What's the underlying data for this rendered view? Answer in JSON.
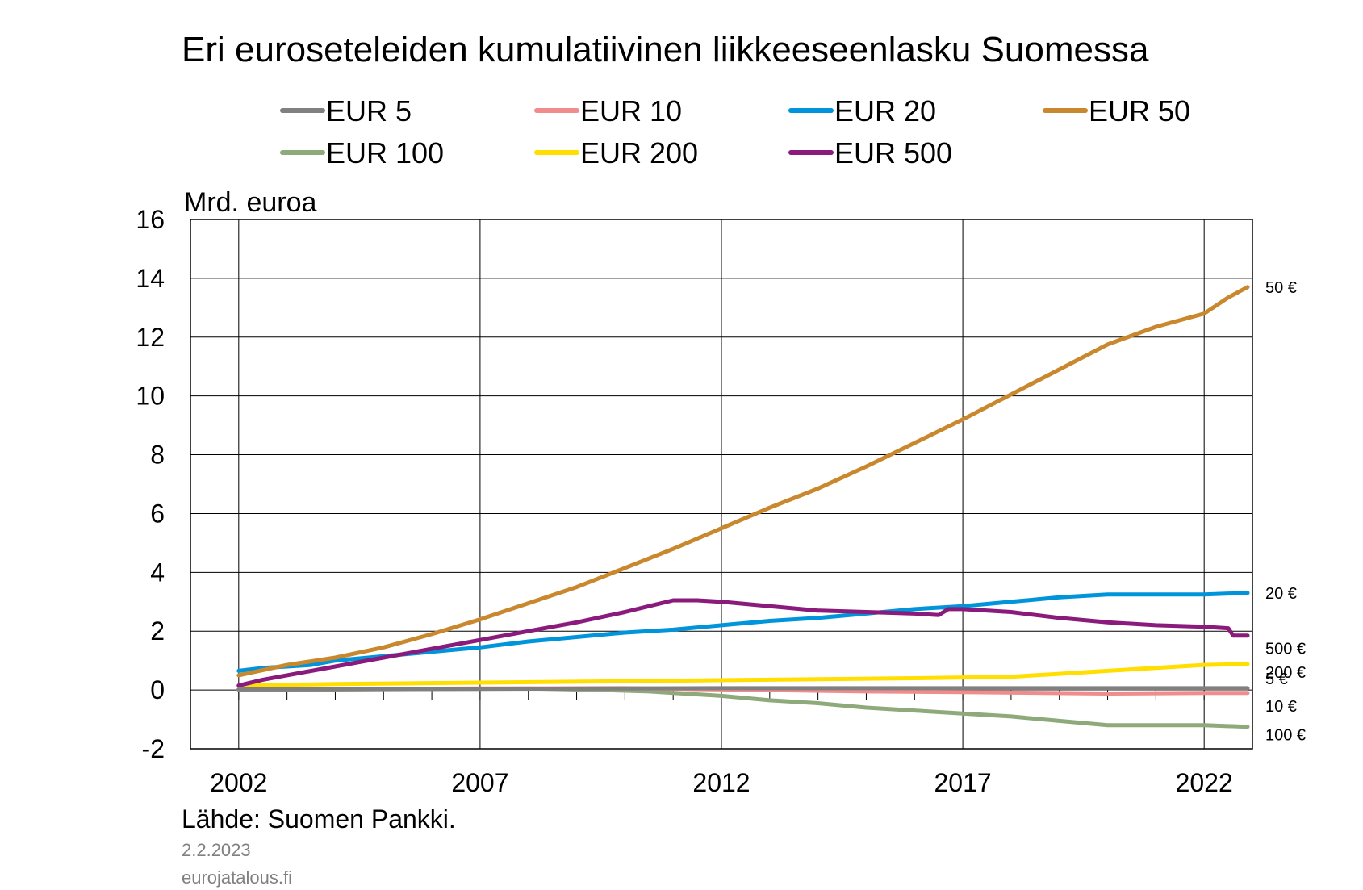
{
  "chart_data": {
    "type": "line",
    "title": "Eri euroseteleiden kumulatiivinen liikkeeseenlasku Suomessa",
    "ylabel": "Mrd. euroa",
    "xlabel": "",
    "ylim": [
      -2,
      16
    ],
    "yticks": [
      "-2",
      "0",
      "2",
      "4",
      "6",
      "8",
      "10",
      "12",
      "14",
      "16"
    ],
    "xlim": [
      2001.0,
      2023.0
    ],
    "xtick_labels": [
      "2002",
      "2007",
      "2012",
      "2017",
      "2022"
    ],
    "xtick_values": [
      2002,
      2007,
      2012,
      2017,
      2022
    ],
    "grid": true,
    "legend_position": "top",
    "source": "Lähde: Suomen Pankki.",
    "date": "2.2.2023",
    "site": "eurojatalous.fi",
    "series": [
      {
        "name": "EUR 5",
        "color": "#808080",
        "end_label": "5 €",
        "points": [
          [
            2002.0,
            0.02
          ],
          [
            2007.0,
            0.04
          ],
          [
            2012.0,
            0.06
          ],
          [
            2017.0,
            0.06
          ],
          [
            2022.0,
            0.06
          ],
          [
            2022.9,
            0.06
          ]
        ]
      },
      {
        "name": "EUR 10",
        "color": "#F08C8C",
        "end_label": "10 €",
        "points": [
          [
            2002.0,
            0.02
          ],
          [
            2007.0,
            0.05
          ],
          [
            2010.0,
            0.06
          ],
          [
            2012.0,
            0.02
          ],
          [
            2015.0,
            -0.05
          ],
          [
            2017.0,
            -0.07
          ],
          [
            2020.0,
            -0.12
          ],
          [
            2022.0,
            -0.1
          ],
          [
            2022.9,
            -0.1
          ]
        ]
      },
      {
        "name": "EUR 20",
        "color": "#0095DA",
        "end_label": "20 €",
        "points": [
          [
            2002.0,
            0.65
          ],
          [
            2002.5,
            0.75
          ],
          [
            2003.0,
            0.8
          ],
          [
            2003.5,
            0.85
          ],
          [
            2004.0,
            1.0
          ],
          [
            2005.0,
            1.15
          ],
          [
            2006.0,
            1.3
          ],
          [
            2007.0,
            1.45
          ],
          [
            2008.0,
            1.65
          ],
          [
            2009.0,
            1.8
          ],
          [
            2010.0,
            1.95
          ],
          [
            2011.0,
            2.05
          ],
          [
            2012.0,
            2.2
          ],
          [
            2013.0,
            2.35
          ],
          [
            2014.0,
            2.45
          ],
          [
            2015.0,
            2.6
          ],
          [
            2016.0,
            2.75
          ],
          [
            2017.0,
            2.85
          ],
          [
            2018.0,
            3.0
          ],
          [
            2019.0,
            3.15
          ],
          [
            2020.0,
            3.25
          ],
          [
            2021.0,
            3.25
          ],
          [
            2022.0,
            3.25
          ],
          [
            2022.9,
            3.3
          ]
        ]
      },
      {
        "name": "EUR 50",
        "color": "#C9882D",
        "end_label": "50 €",
        "points": [
          [
            2002.0,
            0.5
          ],
          [
            2003.0,
            0.85
          ],
          [
            2004.0,
            1.1
          ],
          [
            2005.0,
            1.45
          ],
          [
            2006.0,
            1.9
          ],
          [
            2007.0,
            2.4
          ],
          [
            2008.0,
            2.95
          ],
          [
            2009.0,
            3.5
          ],
          [
            2010.0,
            4.15
          ],
          [
            2011.0,
            4.8
          ],
          [
            2012.0,
            5.5
          ],
          [
            2013.0,
            6.2
          ],
          [
            2014.0,
            6.85
          ],
          [
            2015.0,
            7.6
          ],
          [
            2016.0,
            8.4
          ],
          [
            2017.0,
            9.2
          ],
          [
            2018.0,
            10.05
          ],
          [
            2019.0,
            10.9
          ],
          [
            2020.0,
            11.75
          ],
          [
            2021.0,
            12.35
          ],
          [
            2022.0,
            12.8
          ],
          [
            2022.5,
            13.35
          ],
          [
            2022.9,
            13.7
          ]
        ]
      },
      {
        "name": "EUR 100",
        "color": "#8EAA7A",
        "end_label": "100 €",
        "points": [
          [
            2002.0,
            0.0
          ],
          [
            2008.0,
            0.05
          ],
          [
            2009.5,
            0.0
          ],
          [
            2010.5,
            -0.05
          ],
          [
            2011.0,
            -0.1
          ],
          [
            2012.0,
            -0.2
          ],
          [
            2013.0,
            -0.35
          ],
          [
            2014.0,
            -0.45
          ],
          [
            2015.0,
            -0.6
          ],
          [
            2016.0,
            -0.7
          ],
          [
            2017.0,
            -0.8
          ],
          [
            2018.0,
            -0.9
          ],
          [
            2019.0,
            -1.05
          ],
          [
            2020.0,
            -1.2
          ],
          [
            2021.0,
            -1.2
          ],
          [
            2022.0,
            -1.2
          ],
          [
            2022.9,
            -1.25
          ]
        ]
      },
      {
        "name": "EUR 200",
        "color": "#FFDE00",
        "end_label": "200 €",
        "points": [
          [
            2002.0,
            0.15
          ],
          [
            2004.0,
            0.2
          ],
          [
            2007.0,
            0.25
          ],
          [
            2010.0,
            0.3
          ],
          [
            2013.0,
            0.35
          ],
          [
            2016.0,
            0.4
          ],
          [
            2018.0,
            0.45
          ],
          [
            2019.0,
            0.55
          ],
          [
            2020.0,
            0.65
          ],
          [
            2021.0,
            0.75
          ],
          [
            2022.0,
            0.85
          ],
          [
            2022.9,
            0.88
          ]
        ]
      },
      {
        "name": "EUR 500",
        "color": "#8B1A7D",
        "end_label": "500 €",
        "points": [
          [
            2002.0,
            0.15
          ],
          [
            2002.5,
            0.35
          ],
          [
            2003.0,
            0.5
          ],
          [
            2004.0,
            0.8
          ],
          [
            2005.0,
            1.1
          ],
          [
            2006.0,
            1.4
          ],
          [
            2007.0,
            1.7
          ],
          [
            2008.0,
            2.0
          ],
          [
            2009.0,
            2.3
          ],
          [
            2010.0,
            2.65
          ],
          [
            2010.5,
            2.85
          ],
          [
            2011.0,
            3.05
          ],
          [
            2011.5,
            3.05
          ],
          [
            2012.0,
            3.0
          ],
          [
            2013.0,
            2.85
          ],
          [
            2014.0,
            2.7
          ],
          [
            2015.0,
            2.65
          ],
          [
            2016.0,
            2.6
          ],
          [
            2016.5,
            2.55
          ],
          [
            2016.7,
            2.75
          ],
          [
            2017.0,
            2.75
          ],
          [
            2018.0,
            2.65
          ],
          [
            2019.0,
            2.45
          ],
          [
            2020.0,
            2.3
          ],
          [
            2021.0,
            2.2
          ],
          [
            2022.0,
            2.15
          ],
          [
            2022.5,
            2.1
          ],
          [
            2022.6,
            1.85
          ],
          [
            2022.9,
            1.85
          ]
        ]
      }
    ]
  }
}
